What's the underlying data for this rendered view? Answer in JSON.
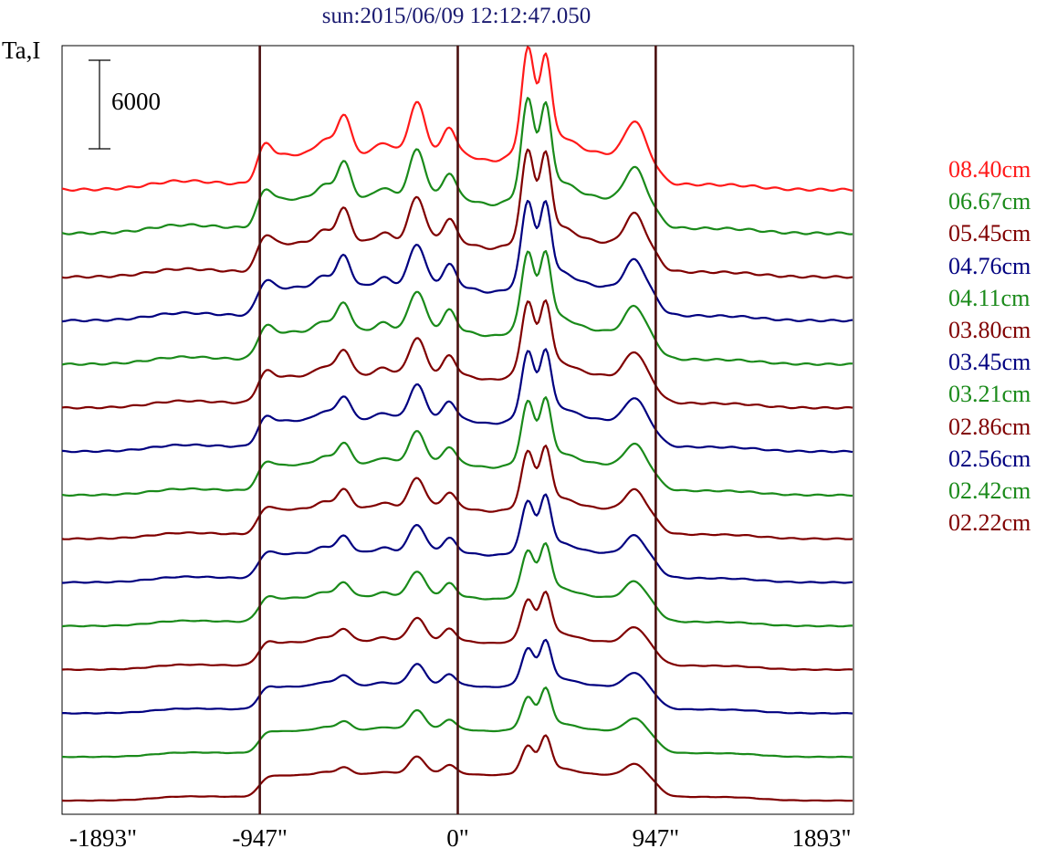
{
  "chart_data": {
    "type": "line",
    "title": "sun:2015/06/09 12:12:47.050",
    "ylabel": "Ta,I",
    "scale_bar_label": "6000",
    "scale_bar_value": 6000,
    "xlim": [
      -1893,
      1893
    ],
    "x_ticks": [
      {
        "value": -1893,
        "label": "-1893\""
      },
      {
        "value": -947,
        "label": "-947\""
      },
      {
        "value": 0,
        "label": "0\""
      },
      {
        "value": 947,
        "label": "947\""
      },
      {
        "value": 1893,
        "label": "1893\""
      }
    ],
    "reference_lines": [
      -947,
      0,
      947
    ],
    "grid": false,
    "legend_placement": "right",
    "colors": {
      "red": "#ff1a1a",
      "green": "#1a8a1a",
      "maroon": "#800000",
      "navy": "#000080",
      "limb": "#4a1010"
    },
    "series": [
      {
        "name": "08.40cm",
        "color": "#ff1a1a",
        "offset": 13
      },
      {
        "name": "06.67cm",
        "color": "#1a8a1a",
        "offset": 12
      },
      {
        "name": "05.45cm",
        "color": "#800000",
        "offset": 11
      },
      {
        "name": "04.76cm",
        "color": "#000080",
        "offset": 10
      },
      {
        "name": "04.11cm",
        "color": "#1a8a1a",
        "offset": 9
      },
      {
        "name": "03.80cm",
        "color": "#800000",
        "offset": 8
      },
      {
        "name": "03.45cm",
        "color": "#000080",
        "offset": 7
      },
      {
        "name": "03.21cm",
        "color": "#1a8a1a",
        "offset": 6
      },
      {
        "name": "02.86cm",
        "color": "#800000",
        "offset": 5
      },
      {
        "name": "02.56cm",
        "color": "#000080",
        "offset": 4
      },
      {
        "name": "02.42cm",
        "color": "#1a8a1a",
        "offset": 3
      },
      {
        "name": "02.22cm",
        "color": "#800000",
        "offset": 2
      },
      {
        "color": "#000080",
        "offset": 1
      },
      {
        "color": "#1a8a1a",
        "offset": 0
      },
      {
        "color": "#800000",
        "offset": -1
      }
    ]
  }
}
